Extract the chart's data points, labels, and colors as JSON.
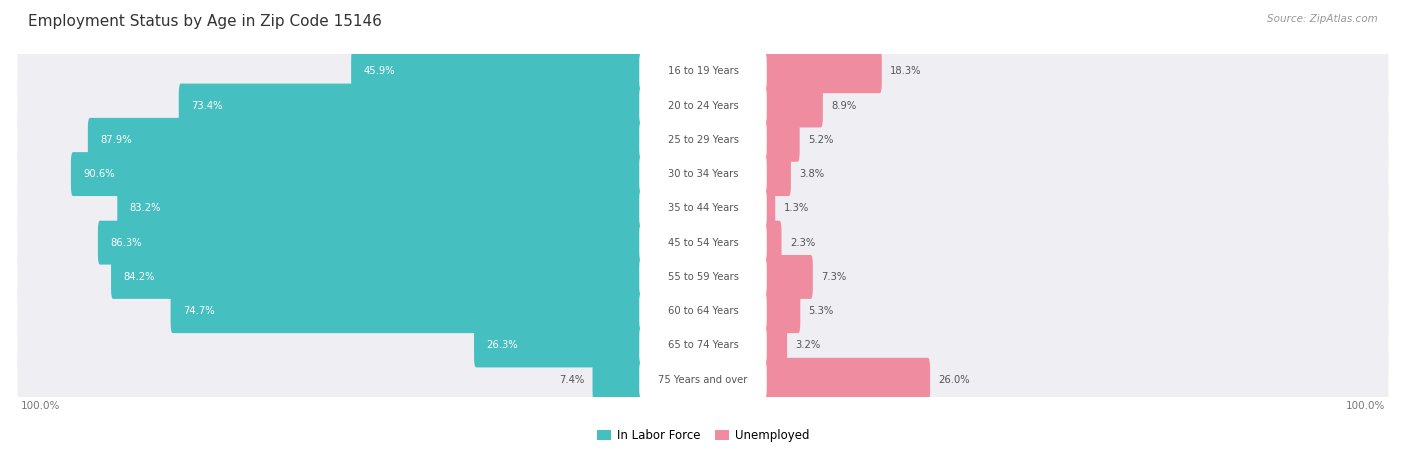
{
  "title": "Employment Status by Age in Zip Code 15146",
  "source": "Source: ZipAtlas.com",
  "categories": [
    "16 to 19 Years",
    "20 to 24 Years",
    "25 to 29 Years",
    "30 to 34 Years",
    "35 to 44 Years",
    "45 to 54 Years",
    "55 to 59 Years",
    "60 to 64 Years",
    "65 to 74 Years",
    "75 Years and over"
  ],
  "labor_force": [
    45.9,
    73.4,
    87.9,
    90.6,
    83.2,
    86.3,
    84.2,
    74.7,
    26.3,
    7.4
  ],
  "unemployed": [
    18.3,
    8.9,
    5.2,
    3.8,
    1.3,
    2.3,
    7.3,
    5.3,
    3.2,
    26.0
  ],
  "labor_force_color": "#45bfbf",
  "unemployed_color": "#f08ca0",
  "row_bg_color": "#ebebf0",
  "row_bg_light": "#f5f5f8",
  "center_badge_color": "#ffffff",
  "title_color": "#333333",
  "source_color": "#999999",
  "legend_labor": "In Labor Force",
  "legend_unemployed": "Unemployed",
  "x_left_label": "100.0%",
  "x_right_label": "100.0%",
  "max_value": 100.0
}
